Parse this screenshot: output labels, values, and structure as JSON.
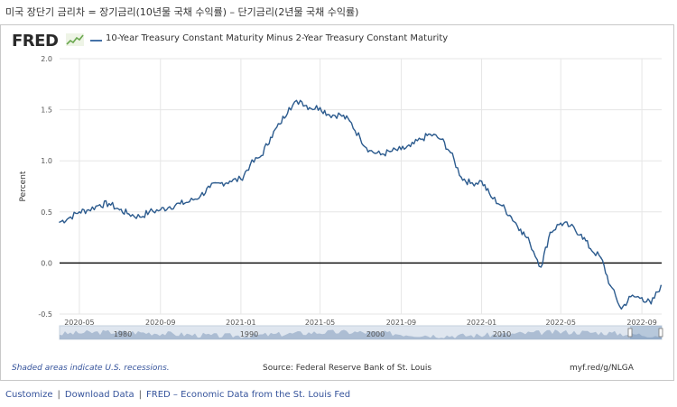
{
  "page": {
    "heading": "미국 장단기 금리차 = 장기금리(10년물 국채 수익률) – 단기금리(2년물 국채 수익률)"
  },
  "header": {
    "logo": "FRED",
    "series_label": "10-Year Treasury Constant Maturity Minus 2-Year Treasury Constant Maturity",
    "series_color": "#4572a7"
  },
  "footer": {
    "recession_note": "Shaded areas indicate U.S. recessions.",
    "source": "Source: Federal Reserve Bank of St. Louis",
    "short_url": "myf.red/g/NLGA"
  },
  "links": {
    "customize": "Customize",
    "download": "Download Data",
    "fred": "FRED – Economic Data from the St. Louis Fed",
    "separator": "|"
  },
  "chart_data": {
    "type": "line",
    "ylabel": "Percent",
    "ylim": [
      -0.5,
      2.0
    ],
    "yticks": [
      "2.0",
      "1.5",
      "1.0",
      "0.5",
      "0.0",
      "-0.5"
    ],
    "xticks": [
      "2020-05",
      "2020-09",
      "2021-01",
      "2021-05",
      "2021-09",
      "2022-01",
      "2022-05",
      "2022-09"
    ],
    "grid": true,
    "zero_line": true,
    "line_color": "#2c5b8e",
    "navigator_labels": [
      "1980",
      "1990",
      "2000",
      "2010"
    ],
    "series": [
      {
        "x": [
          "2020-04-01",
          "2020-04-15",
          "2020-05-01",
          "2020-05-15",
          "2020-06-01",
          "2020-06-15",
          "2020-07-01",
          "2020-07-15",
          "2020-08-01",
          "2020-08-15",
          "2020-09-01",
          "2020-09-15",
          "2020-10-01",
          "2020-10-15",
          "2020-11-01",
          "2020-11-15",
          "2020-12-01",
          "2020-12-15",
          "2021-01-01",
          "2021-01-15",
          "2021-02-01",
          "2021-02-15",
          "2021-03-01",
          "2021-03-15",
          "2021-04-01",
          "2021-04-15",
          "2021-05-01",
          "2021-05-15",
          "2021-06-01",
          "2021-06-15",
          "2021-07-01",
          "2021-07-15",
          "2021-08-01",
          "2021-08-15",
          "2021-09-01",
          "2021-09-15",
          "2021-10-01",
          "2021-10-15",
          "2021-11-01",
          "2021-11-15",
          "2021-12-01",
          "2021-12-15",
          "2022-01-01",
          "2022-01-15",
          "2022-02-01",
          "2022-02-15",
          "2022-03-01",
          "2022-03-15",
          "2022-04-01",
          "2022-04-15",
          "2022-05-01",
          "2022-05-15",
          "2022-06-01",
          "2022-06-15",
          "2022-07-01",
          "2022-07-15",
          "2022-08-01",
          "2022-08-15",
          "2022-09-01",
          "2022-09-15",
          "2022-09-30"
        ],
        "y": [
          0.4,
          0.44,
          0.5,
          0.52,
          0.57,
          0.58,
          0.52,
          0.48,
          0.45,
          0.5,
          0.52,
          0.55,
          0.58,
          0.6,
          0.66,
          0.74,
          0.78,
          0.8,
          0.82,
          0.96,
          1.05,
          1.23,
          1.36,
          1.52,
          1.59,
          1.52,
          1.52,
          1.45,
          1.45,
          1.39,
          1.22,
          1.1,
          1.06,
          1.09,
          1.11,
          1.14,
          1.21,
          1.26,
          1.21,
          1.08,
          0.84,
          0.78,
          0.8,
          0.65,
          0.56,
          0.45,
          0.33,
          0.2,
          -0.04,
          0.3,
          0.39,
          0.36,
          0.28,
          0.14,
          0.05,
          -0.22,
          -0.45,
          -0.33,
          -0.34,
          -0.4,
          -0.22
        ]
      }
    ]
  }
}
